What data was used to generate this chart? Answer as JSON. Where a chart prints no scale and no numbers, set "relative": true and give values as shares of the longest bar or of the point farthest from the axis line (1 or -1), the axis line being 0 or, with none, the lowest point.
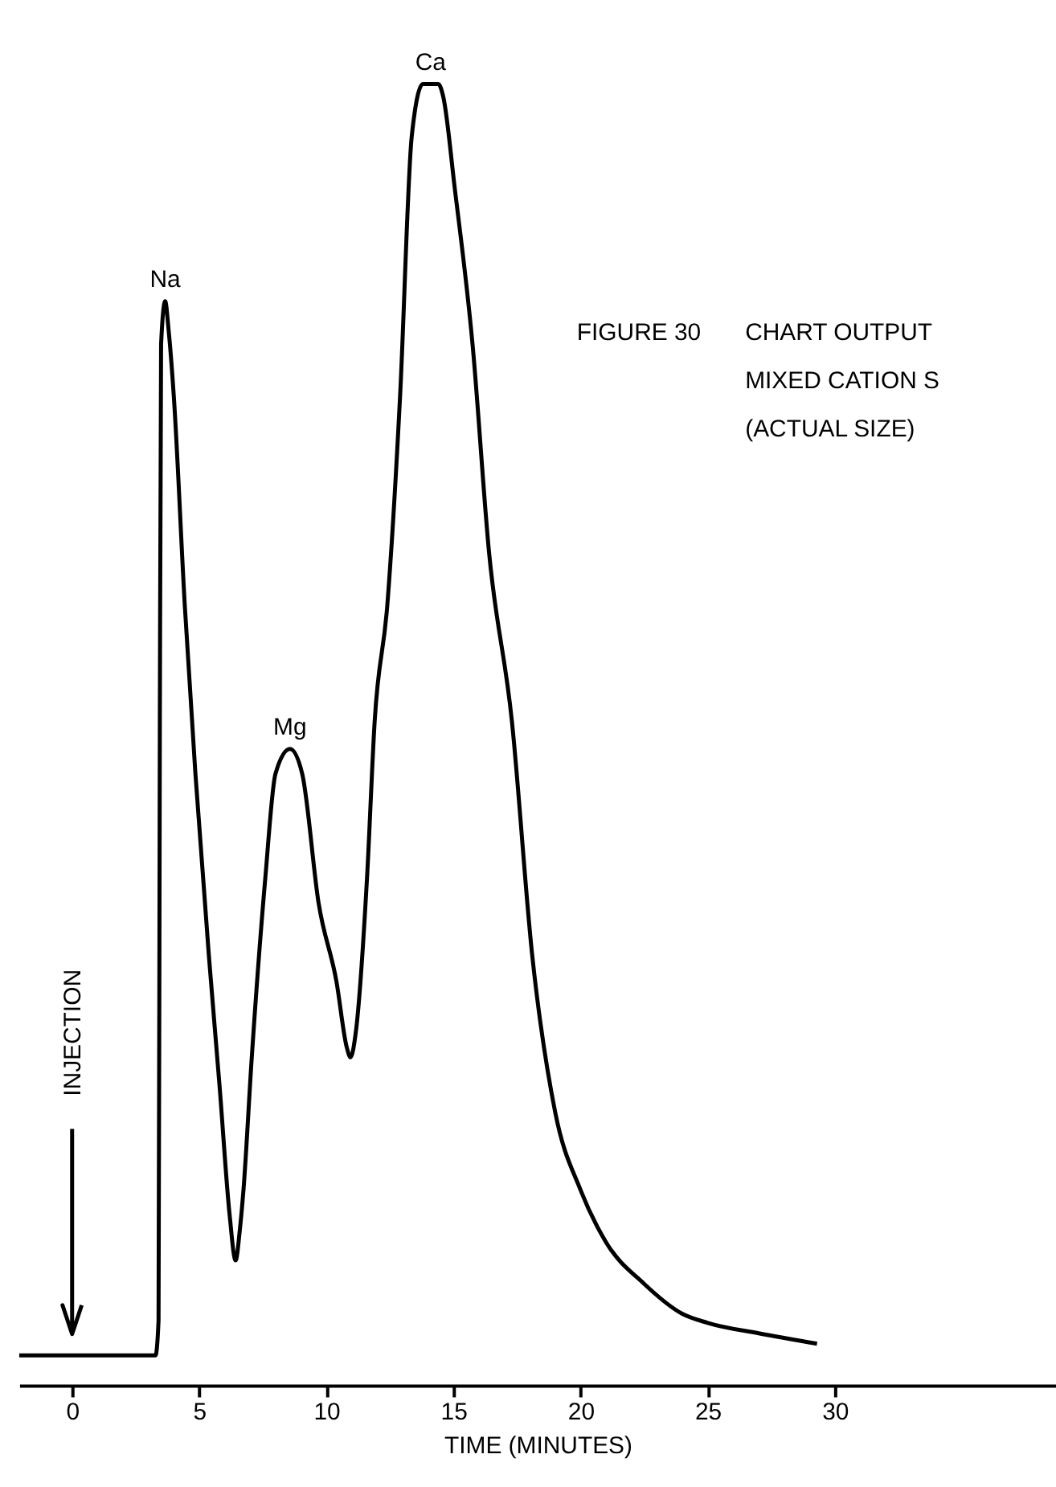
{
  "chart_data": {
    "type": "line",
    "relative": true,
    "xlabel": "TIME (MINUTES)",
    "xlim": [
      -2.08,
      38.7
    ],
    "xticks": [
      0,
      5,
      10,
      15,
      20,
      25,
      30
    ],
    "tick_labels": "x",
    "x": [
      -2.08,
      3.28,
      3.4,
      3.45,
      3.5,
      3.66,
      3.8,
      4.0,
      4.43,
      4.85,
      5.38,
      5.8,
      6.2,
      6.43,
      6.6,
      6.74,
      7.06,
      7.6,
      8.0,
      8.57,
      9.05,
      9.7,
      10.4,
      10.8,
      10.95,
      11.15,
      11.6,
      11.9,
      12.4,
      12.9,
      13.36,
      13.8,
      14.4,
      14.6,
      15.05,
      15.75,
      16.4,
      17.3,
      18.1,
      19.0,
      20.0,
      21.0,
      22.5,
      24.0,
      25.0,
      27.0,
      29.3
    ],
    "series": [
      {
        "color": "#000000",
        "values": [
          0.023,
          0.023,
          0.05,
          0.5,
          0.8,
          0.833,
          0.81,
          0.76,
          0.6,
          0.47,
          0.33,
          0.23,
          0.13,
          0.096,
          0.12,
          0.15,
          0.25,
          0.39,
          0.47,
          0.489,
          0.47,
          0.37,
          0.31,
          0.26,
          0.252,
          0.27,
          0.39,
          0.51,
          0.6,
          0.76,
          0.96,
          1.0,
          1.0,
          0.99,
          0.92,
          0.8,
          0.64,
          0.51,
          0.33,
          0.21,
          0.15,
          0.11,
          0.078,
          0.055,
          0.048,
          0.04,
          0.032
        ]
      }
    ],
    "annotations": [
      {
        "text": "Na",
        "x": 3.66,
        "y": 0.833
      },
      {
        "text": "Mg",
        "x": 8.57,
        "y": 0.489
      },
      {
        "text": "Ca",
        "x": 14.1,
        "y": 1.0
      },
      "FIGURE 30",
      "CHART OUTPUT",
      "MIXED CATION S",
      "(ACTUAL SIZE)"
    ],
    "ref_lines": [
      {
        "axis": "x",
        "value": 0,
        "label": "INJECTION",
        "color": "#000000"
      }
    ]
  }
}
